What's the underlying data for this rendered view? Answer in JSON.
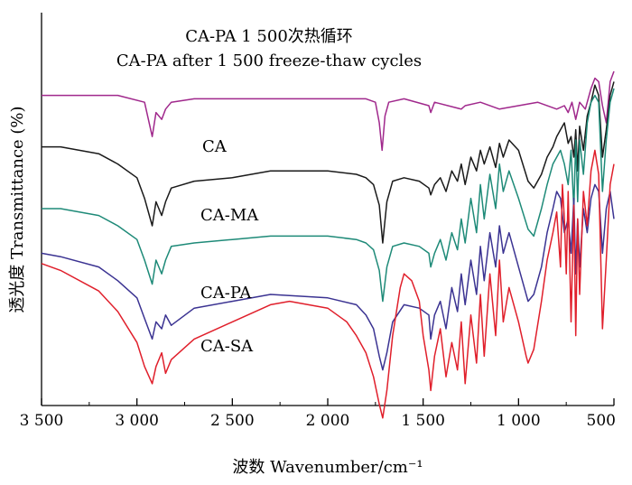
{
  "chart_data": {
    "type": "line",
    "title": "CA-PA 1 500次热循环",
    "subtitle": "CA-PA after 1 500 freeze-thaw cycles",
    "xlabel": "波数 Wavenumber/cm⁻¹",
    "ylabel": "透光度 Transmittance (%)",
    "xlim": [
      3500,
      500
    ],
    "ylim": [
      0,
      100
    ],
    "x_ticks": [
      3500,
      3000,
      2500,
      2000,
      1500,
      1000,
      500
    ],
    "x_tick_labels": [
      "3 500",
      "3 000",
      "2 500",
      "2 000",
      "1 500",
      "1 000",
      "500"
    ],
    "series": [
      {
        "name": "CA-PA 1 500次热循环",
        "label": "",
        "color": "#a0288c",
        "x": [
          3500,
          3100,
          2960,
          2920,
          2900,
          2870,
          2850,
          2820,
          2700,
          2400,
          2000,
          1800,
          1750,
          1730,
          1715,
          1700,
          1680,
          1600,
          1470,
          1460,
          1440,
          1300,
          1280,
          1200,
          1100,
          1000,
          900,
          800,
          760,
          740,
          720,
          700,
          680,
          650,
          620,
          600,
          580,
          560,
          540,
          520,
          500
        ],
        "y": [
          88,
          88,
          86,
          76,
          83,
          81,
          84,
          86,
          87,
          87,
          87,
          87,
          86,
          80,
          72,
          82,
          86,
          87,
          85,
          83,
          86,
          84,
          85,
          86,
          84,
          85,
          86,
          84,
          85,
          83,
          86,
          81,
          86,
          84,
          90,
          93,
          92,
          85,
          80,
          92,
          95
        ]
      },
      {
        "name": "CA",
        "label": "CA",
        "color": "#1a1a1a",
        "x": [
          3500,
          3400,
          3200,
          3100,
          3000,
          2960,
          2920,
          2900,
          2870,
          2850,
          2820,
          2700,
          2500,
          2300,
          2000,
          1850,
          1800,
          1760,
          1730,
          1712,
          1690,
          1660,
          1600,
          1520,
          1470,
          1460,
          1440,
          1410,
          1380,
          1350,
          1320,
          1300,
          1280,
          1250,
          1220,
          1200,
          1180,
          1150,
          1120,
          1100,
          1080,
          1050,
          1000,
          950,
          920,
          880,
          850,
          820,
          800,
          780,
          760,
          740,
          725,
          710,
          700,
          690,
          680,
          660,
          640,
          620,
          600,
          580,
          560,
          540,
          520,
          500
        ],
        "y": [
          73,
          73,
          71,
          68,
          64,
          58,
          50,
          57,
          53,
          57,
          61,
          63,
          64,
          66,
          66,
          65,
          64,
          62,
          56,
          45,
          57,
          63,
          64,
          63,
          61,
          59,
          62,
          64,
          60,
          66,
          63,
          68,
          62,
          70,
          66,
          72,
          68,
          73,
          67,
          74,
          70,
          75,
          72,
          63,
          61,
          65,
          70,
          73,
          76,
          78,
          80,
          74,
          76,
          70,
          78,
          66,
          79,
          72,
          82,
          86,
          91,
          88,
          70,
          78,
          88,
          92
        ]
      },
      {
        "name": "CA-MA",
        "label": "CA-MA",
        "color": "#1e8a78",
        "x": [
          3500,
          3400,
          3200,
          3100,
          3000,
          2960,
          2920,
          2900,
          2870,
          2850,
          2820,
          2700,
          2500,
          2300,
          2000,
          1850,
          1800,
          1760,
          1730,
          1712,
          1690,
          1660,
          1600,
          1520,
          1470,
          1460,
          1440,
          1410,
          1380,
          1350,
          1320,
          1300,
          1280,
          1250,
          1220,
          1200,
          1180,
          1150,
          1120,
          1100,
          1080,
          1050,
          1000,
          950,
          920,
          880,
          850,
          820,
          800,
          780,
          760,
          740,
          725,
          710,
          700,
          690,
          680,
          660,
          640,
          620,
          600,
          580,
          560,
          540,
          520,
          500
        ],
        "y": [
          55,
          55,
          53,
          50,
          46,
          40,
          33,
          40,
          36,
          40,
          44,
          45,
          46,
          47,
          47,
          46,
          45,
          43,
          37,
          28,
          38,
          44,
          45,
          44,
          42,
          38,
          42,
          46,
          40,
          48,
          43,
          52,
          45,
          58,
          48,
          62,
          52,
          65,
          55,
          68,
          60,
          66,
          58,
          49,
          47,
          55,
          62,
          68,
          70,
          72,
          68,
          62,
          72,
          55,
          75,
          57,
          75,
          65,
          80,
          86,
          88,
          86,
          60,
          75,
          86,
          90
        ]
      },
      {
        "name": "CA-PA",
        "label": "CA-PA",
        "color": "#3b3392",
        "x": [
          3500,
          3400,
          3200,
          3100,
          3000,
          2960,
          2920,
          2900,
          2870,
          2850,
          2820,
          2700,
          2500,
          2300,
          2000,
          1850,
          1800,
          1760,
          1730,
          1712,
          1690,
          1660,
          1600,
          1520,
          1470,
          1460,
          1440,
          1410,
          1380,
          1350,
          1320,
          1300,
          1280,
          1250,
          1220,
          1200,
          1180,
          1150,
          1120,
          1100,
          1080,
          1050,
          1000,
          950,
          920,
          880,
          850,
          820,
          800,
          780,
          760,
          740,
          725,
          710,
          700,
          690,
          680,
          660,
          640,
          620,
          600,
          580,
          560,
          540,
          520,
          500
        ],
        "y": [
          42,
          41,
          38,
          34,
          29,
          23,
          17,
          22,
          20,
          24,
          21,
          26,
          28,
          30,
          29,
          27,
          24,
          20,
          12,
          8,
          13,
          22,
          27,
          26,
          24,
          17,
          24,
          28,
          20,
          32,
          25,
          36,
          27,
          40,
          30,
          44,
          34,
          48,
          38,
          50,
          42,
          48,
          38,
          28,
          30,
          38,
          48,
          55,
          60,
          58,
          48,
          52,
          42,
          58,
          36,
          52,
          38,
          55,
          48,
          58,
          62,
          60,
          42,
          55,
          60,
          52
        ]
      },
      {
        "name": "CA-SA",
        "label": "CA-SA",
        "color": "#e01f2b",
        "x": [
          3500,
          3400,
          3200,
          3100,
          3000,
          2960,
          2920,
          2900,
          2870,
          2850,
          2820,
          2700,
          2500,
          2300,
          2200,
          2000,
          1900,
          1850,
          1800,
          1760,
          1730,
          1712,
          1690,
          1660,
          1620,
          1600,
          1560,
          1520,
          1500,
          1470,
          1460,
          1440,
          1410,
          1380,
          1350,
          1320,
          1300,
          1280,
          1250,
          1220,
          1200,
          1180,
          1150,
          1120,
          1100,
          1080,
          1050,
          1000,
          960,
          950,
          920,
          880,
          850,
          820,
          800,
          780,
          770,
          760,
          750,
          740,
          725,
          710,
          700,
          690,
          680,
          660,
          640,
          620,
          600,
          580,
          560,
          540,
          520,
          500
        ],
        "y": [
          39,
          37,
          31,
          25,
          16,
          9,
          4,
          9,
          13,
          7,
          11,
          17,
          22,
          27,
          28,
          26,
          22,
          18,
          13,
          6,
          -2,
          -6,
          2,
          18,
          32,
          36,
          34,
          28,
          18,
          8,
          2,
          12,
          20,
          6,
          16,
          8,
          22,
          4,
          24,
          10,
          30,
          12,
          36,
          18,
          40,
          22,
          32,
          22,
          12,
          10,
          14,
          28,
          40,
          48,
          54,
          38,
          62,
          52,
          36,
          60,
          22,
          56,
          18,
          52,
          30,
          60,
          50,
          66,
          72,
          65,
          20,
          40,
          62,
          68
        ]
      }
    ]
  }
}
